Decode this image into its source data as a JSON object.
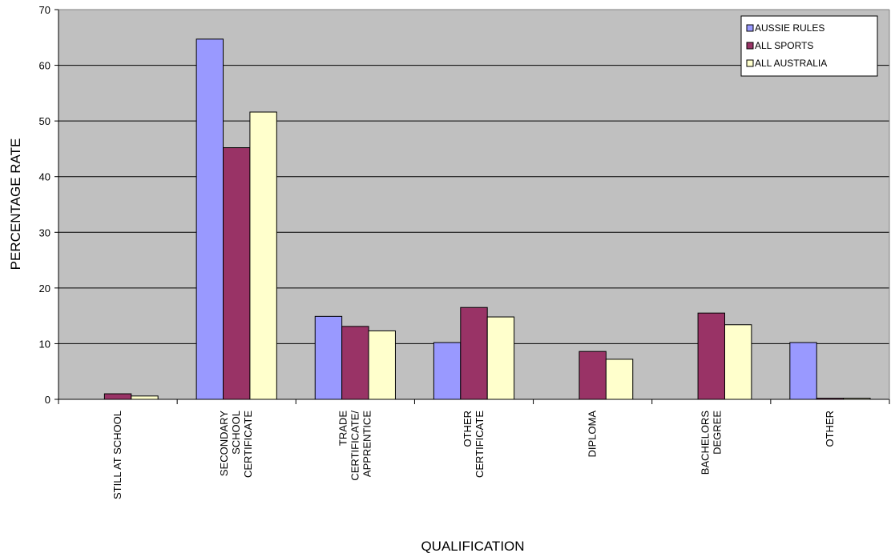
{
  "chart_data": {
    "type": "bar",
    "title": "",
    "xlabel": "QUALIFICATION",
    "ylabel": "PERCENTAGE RATE",
    "ylim": [
      0,
      70
    ],
    "yticks": [
      0,
      10,
      20,
      30,
      40,
      50,
      60,
      70
    ],
    "grid": true,
    "legend_position": "top-right",
    "background_color": "#C0C0C0",
    "categories": [
      [
        "STILL AT SCHOOL"
      ],
      [
        "SECONDARY",
        "SCHOOL",
        "CERTIFICATE"
      ],
      [
        "TRADE",
        "CERTIFICATE/",
        "APPRENTICE"
      ],
      [
        "OTHER",
        "CERTIFICATE"
      ],
      [
        "DIPLOMA"
      ],
      [
        "BACHELORS",
        "DEGREE"
      ],
      [
        "OTHER"
      ]
    ],
    "series": [
      {
        "name": "AUSSIE RULES",
        "color": "#9999FF",
        "values": [
          0,
          64.7,
          14.9,
          10.2,
          0,
          0,
          10.2
        ]
      },
      {
        "name": "ALL SPORTS",
        "color": "#993366",
        "values": [
          1.0,
          45.2,
          13.1,
          16.5,
          8.6,
          15.5,
          0.2
        ]
      },
      {
        "name": "ALL AUSTRALIA",
        "color": "#FFFFCC",
        "values": [
          0.6,
          51.6,
          12.3,
          14.8,
          7.2,
          13.4,
          0.2
        ]
      }
    ]
  }
}
